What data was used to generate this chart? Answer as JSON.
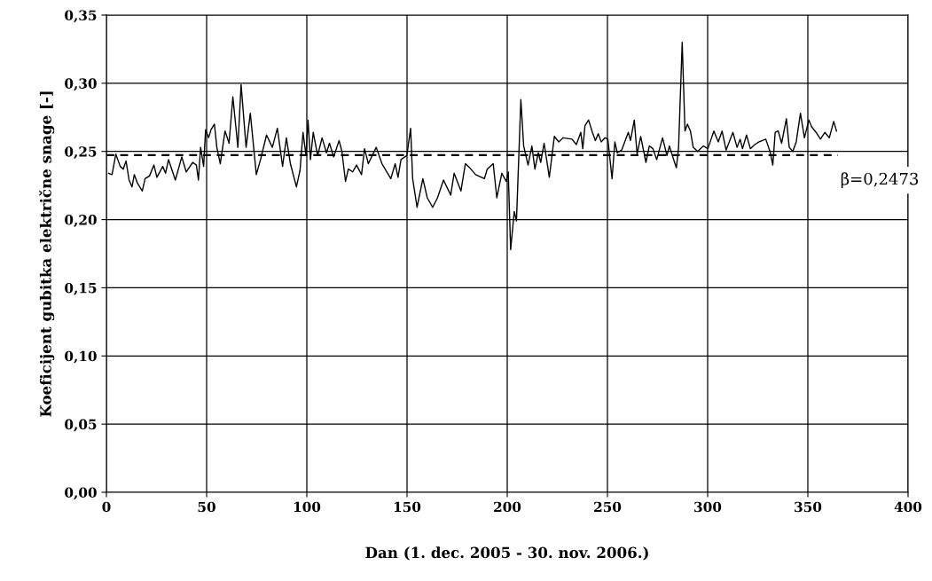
{
  "chart_data": {
    "type": "line",
    "xlabel": "Dan (1. dec. 2005 - 30. nov. 2006.)",
    "ylabel": "Koeficijent gubitka električne snage [-]",
    "xlim": [
      0,
      400
    ],
    "xticks": [
      0,
      50,
      100,
      150,
      200,
      250,
      300,
      350,
      400
    ],
    "ylim": [
      0,
      0.35
    ],
    "yticks": [
      {
        "value": 0,
        "label": "0,00"
      },
      {
        "value": 0.05,
        "label": "0,05"
      },
      {
        "value": 0.1,
        "label": "0,10"
      },
      {
        "value": 0.15,
        "label": "0,15"
      },
      {
        "value": 0.2,
        "label": "0,20"
      },
      {
        "value": 0.25,
        "label": "0,25"
      },
      {
        "value": 0.3,
        "label": "0,30"
      },
      {
        "value": 0.35,
        "label": "0,35"
      }
    ],
    "grid": true,
    "legend": false,
    "marker": "none",
    "series": [
      {
        "color": "#000000",
        "line_style": "solid",
        "x": [
          1.1,
          2.8,
          4.7,
          6.9,
          8.4,
          9.8,
          11.3,
          12.8,
          13.9,
          15.4,
          17.9,
          19.3,
          21.5,
          23.7,
          25.2,
          28.1,
          29.5,
          31.0,
          34.4,
          37.6,
          39.8,
          43.1,
          44.9,
          45.9,
          47.0,
          48.5,
          49.5,
          51.0,
          52.2,
          53.9,
          55.1,
          56.8,
          59.2,
          61.2,
          63.1,
          65.6,
          67.2,
          69.7,
          71.8,
          74.8,
          76.9,
          79.9,
          82.8,
          85.3,
          87.9,
          89.8,
          91.8,
          94.8,
          96.6,
          98.1,
          99.6,
          100.6,
          101.8,
          103.2,
          105.4,
          107.6,
          109.8,
          111.3,
          113.4,
          116.1,
          117.5,
          119.3,
          120.7,
          122.9,
          124.8,
          127.3,
          128.8,
          130.7,
          134.6,
          137.5,
          141.9,
          144.1,
          145.5,
          147.0,
          149.9,
          151.8,
          152.8,
          155.0,
          157.9,
          160.1,
          162.8,
          165.2,
          168.2,
          171.8,
          173.5,
          176.9,
          179.1,
          181.3,
          184.2,
          188.6,
          190.0,
          193.0,
          194.8,
          197.3,
          199.5,
          200.5,
          201.7,
          203.5,
          204.6,
          206.8,
          208.2,
          210.4,
          212.3,
          213.8,
          215.5,
          216.7,
          218.4,
          221.0,
          223.5,
          225.7,
          227.9,
          232.3,
          234.5,
          236.7,
          237.7,
          238.8,
          240.6,
          242.5,
          244.0,
          245.4,
          246.9,
          248.8,
          250.2,
          252.3,
          253.7,
          254.9,
          257.1,
          260.4,
          261.5,
          263.4,
          264.8,
          266.6,
          269.2,
          270.9,
          272.7,
          274.6,
          277.5,
          279.7,
          280.9,
          282.6,
          284.4,
          285.5,
          287.3,
          288.7,
          289.9,
          291.4,
          292.8,
          295.0,
          297.9,
          300.1,
          303.1,
          305.3,
          307.2,
          309.2,
          312.6,
          314.7,
          316.2,
          317.4,
          319.4,
          321.3,
          323.5,
          325.7,
          329.0,
          331.1,
          332.5,
          333.7,
          335.2,
          336.9,
          339.3,
          340.7,
          342.5,
          344.2,
          346.3,
          348.3,
          350.5,
          351.9,
          354.1,
          356.3,
          358.5,
          360.7,
          362.9,
          364.3
        ],
        "values": [
          0.234,
          0.233,
          0.248,
          0.239,
          0.237,
          0.243,
          0.229,
          0.224,
          0.233,
          0.227,
          0.221,
          0.23,
          0.232,
          0.24,
          0.231,
          0.239,
          0.234,
          0.244,
          0.229,
          0.246,
          0.235,
          0.242,
          0.24,
          0.229,
          0.253,
          0.239,
          0.266,
          0.26,
          0.266,
          0.27,
          0.253,
          0.241,
          0.265,
          0.256,
          0.29,
          0.253,
          0.299,
          0.253,
          0.278,
          0.233,
          0.244,
          0.262,
          0.253,
          0.267,
          0.239,
          0.26,
          0.241,
          0.224,
          0.236,
          0.264,
          0.247,
          0.273,
          0.244,
          0.264,
          0.247,
          0.26,
          0.249,
          0.256,
          0.246,
          0.258,
          0.25,
          0.228,
          0.237,
          0.235,
          0.24,
          0.233,
          0.252,
          0.241,
          0.253,
          0.241,
          0.23,
          0.241,
          0.231,
          0.244,
          0.247,
          0.267,
          0.23,
          0.209,
          0.23,
          0.216,
          0.209,
          0.216,
          0.229,
          0.218,
          0.234,
          0.221,
          0.241,
          0.238,
          0.233,
          0.23,
          0.237,
          0.241,
          0.216,
          0.234,
          0.228,
          0.235,
          0.178,
          0.206,
          0.199,
          0.288,
          0.254,
          0.24,
          0.254,
          0.237,
          0.249,
          0.242,
          0.256,
          0.231,
          0.261,
          0.257,
          0.26,
          0.259,
          0.255,
          0.264,
          0.252,
          0.269,
          0.273,
          0.264,
          0.258,
          0.263,
          0.257,
          0.26,
          0.259,
          0.23,
          0.257,
          0.249,
          0.251,
          0.264,
          0.258,
          0.273,
          0.248,
          0.261,
          0.242,
          0.254,
          0.252,
          0.244,
          0.26,
          0.247,
          0.254,
          0.246,
          0.238,
          0.253,
          0.33,
          0.265,
          0.27,
          0.265,
          0.253,
          0.25,
          0.254,
          0.252,
          0.265,
          0.257,
          0.265,
          0.251,
          0.264,
          0.253,
          0.259,
          0.252,
          0.262,
          0.252,
          0.255,
          0.257,
          0.259,
          0.25,
          0.24,
          0.264,
          0.265,
          0.256,
          0.274,
          0.253,
          0.25,
          0.257,
          0.278,
          0.26,
          0.273,
          0.268,
          0.264,
          0.259,
          0.264,
          0.26,
          0.272,
          0.265
        ]
      },
      {
        "color": "#000000",
        "line_style": "dashed",
        "x": [
          0,
          365
        ],
        "values": [
          0.2473,
          0.2473
        ]
      }
    ],
    "annotations": [
      {
        "text": "β=0,2473",
        "x": 365,
        "y": 0.2473
      }
    ]
  }
}
